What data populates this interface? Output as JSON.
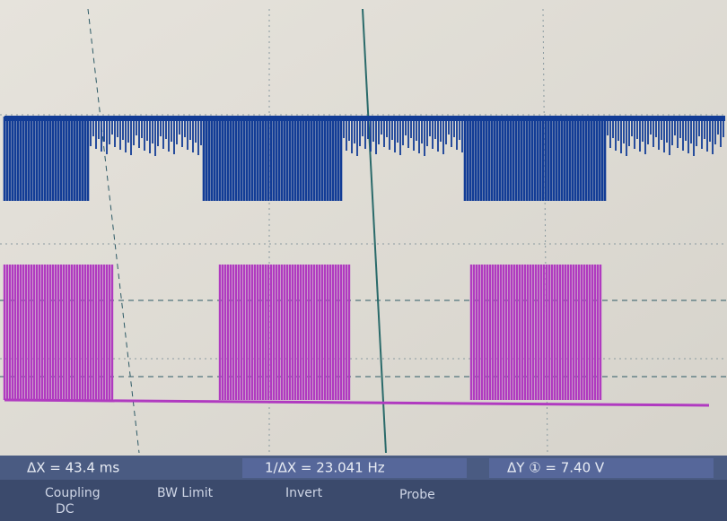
{
  "measurements": {
    "delta_x": "ΔX = 43.4 ms",
    "inverse_delta_x": "1/ΔX = 23.041 Hz",
    "delta_y": "ΔY ① = 7.40 V"
  },
  "menu": [
    {
      "label": "Coupling",
      "value": "DC"
    },
    {
      "label": "BW Limit"
    },
    {
      "label": "Invert"
    },
    {
      "label": "Probe"
    }
  ]
}
